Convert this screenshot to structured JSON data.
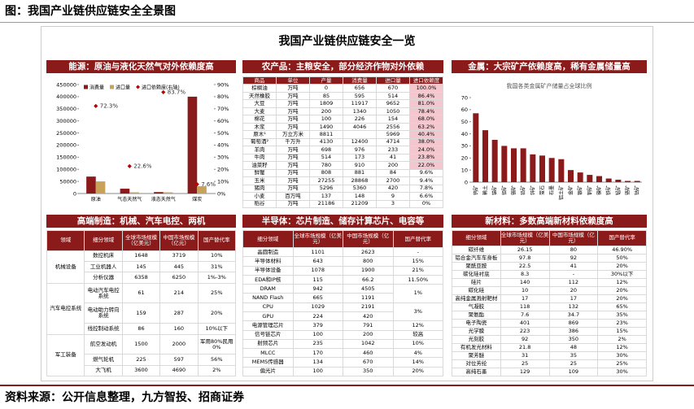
{
  "header": "图：我国产业链供应链安全全景图",
  "title": "我国产业链供应链安全一览",
  "footer": "资料来源：公开信息整理，九方智投、招商证券",
  "sections": [
    "能源：原油与液化天然气对外依赖度高",
    "农产品：主粮安全，部分经济作物对外依赖",
    "金属：大宗矿产依赖度高，稀有金属储量高",
    "高端制造：机械、汽车电控、两机",
    "半导体：芯片制造、储存计算芯片、电容等",
    "新材料：多数高端新材料依赖度高"
  ],
  "chart_data": [
    {
      "type": "bar",
      "categories": [
        "原油",
        "气态天然气",
        "液态天然气",
        "煤炭"
      ],
      "series": [
        {
          "name": "消费量",
          "color": "#8b1a1a",
          "values": [
            70000,
            20000,
            6000,
            400000
          ]
        },
        {
          "name": "进口量",
          "color": "#c9a25a",
          "values": [
            50000,
            5000,
            5000,
            30000
          ]
        },
        {
          "name": "进口依赖度(右轴)",
          "color": "#c00000",
          "axis": "y2",
          "marker": "diamond",
          "values": [
            72.3,
            22.6,
            83.7,
            7.6
          ],
          "value_labels": [
            "72.3%",
            "22.6%",
            "83.7%",
            "7.6%"
          ]
        }
      ],
      "ylim": [
        0,
        450000
      ],
      "yticks": [
        0,
        50000,
        100000,
        150000,
        200000,
        250000,
        300000,
        350000,
        400000,
        450000
      ],
      "y2lim": [
        0,
        90
      ],
      "y2ticks": [
        {
          "value": 0,
          "label": "0%"
        },
        {
          "value": 10,
          "label": "10%"
        },
        {
          "value": 20,
          "label": "20%"
        },
        {
          "value": 30,
          "label": "30%"
        },
        {
          "value": 40,
          "label": "40%"
        },
        {
          "value": 50,
          "label": "50%"
        },
        {
          "value": 60,
          "label": "60%"
        },
        {
          "value": 70,
          "label": "70%"
        },
        {
          "value": 80,
          "label": "80%"
        },
        {
          "value": 90,
          "label": "90%"
        }
      ]
    },
    {
      "type": "bar",
      "subtitle": "我国各类金属矿产储量占全球比例",
      "color": "#8b1a1a",
      "categories": [
        "钨矿",
        "稀土",
        "锑矿",
        "钼矿",
        "锡矿",
        "铅矿",
        "锌矿",
        "萤石",
        "石墨",
        "铝土矿",
        "金矿",
        "银矿",
        "铜矿",
        "镍矿",
        "铁矿",
        "锰矿",
        "铬矿",
        "钴矿"
      ],
      "values": [
        57,
        43,
        35,
        30,
        28,
        28,
        23,
        22,
        20,
        19,
        10,
        8,
        6,
        5,
        3,
        2,
        1,
        1
      ],
      "ylim": [
        0,
        70
      ],
      "yticks": [
        0,
        10,
        20,
        30,
        40,
        50,
        60,
        70
      ]
    }
  ],
  "tables": {
    "agriculture": {
      "columns": [
        "商品",
        "单位",
        "产量",
        "消费量",
        "进口量",
        "进口依赖度"
      ],
      "rows": [
        [
          "棕榈油",
          "万吨",
          "0",
          "656",
          "670",
          "100.0%"
        ],
        [
          "天然橡胶",
          "万吨",
          "85",
          "595",
          "514",
          "86.4%"
        ],
        [
          "大豆",
          "万吨",
          "1809",
          "11917",
          "9652",
          "81.0%"
        ],
        [
          "大麦",
          "万吨",
          "200",
          "1340",
          "1050",
          "78.4%"
        ],
        [
          "棉花",
          "万吨",
          "100",
          "226",
          "154",
          "68.0%"
        ],
        [
          "木浆",
          "万吨",
          "1490",
          "4046",
          "2556",
          "63.2%"
        ],
        [
          "原木¹",
          "万立方米",
          "8811",
          null,
          "5969",
          "40.4%"
        ],
        [
          "葡萄酒²",
          "千万升",
          "4130",
          "12400",
          "4714",
          "38.0%"
        ],
        [
          "羊肉",
          "万吨",
          "698",
          "976",
          "233",
          "24.0%"
        ],
        [
          "牛肉",
          "万吨",
          "514",
          "173",
          "41",
          "23.8%"
        ],
        [
          "油菜籽",
          "万吨",
          "780",
          "910",
          "200",
          "22.0%"
        ],
        [
          "鲜蟹",
          "万吨",
          "808",
          "881",
          "84",
          "9.6%"
        ],
        [
          "玉米",
          "万吨",
          "27255",
          "28868",
          "2700",
          "9.4%"
        ],
        [
          "猪肉",
          "万吨",
          "5296",
          "5360",
          "420",
          "7.8%"
        ],
        [
          "小麦",
          "百万吨",
          "137",
          "148",
          "9",
          "6.6%"
        ],
        [
          "稻谷",
          "万吨",
          "21186",
          "21209",
          "3",
          "0%"
        ]
      ]
    },
    "manufacturing": {
      "columns": [
        "领域",
        "细分领域",
        "全球市场规模（亿美元）",
        "中国市场规模（亿元）",
        "国产替代率"
      ],
      "groups": [
        {
          "domain": "机械设备",
          "rows": [
            [
              "数控机床",
              "1648",
              "3719",
              "10%"
            ],
            [
              "工业机器人",
              "145",
              "445",
              "31%"
            ],
            [
              "分析仪器",
              "6358",
              "6250",
              "1%-3%"
            ]
          ]
        },
        {
          "domain": "汽车电控系统",
          "rows": [
            [
              "电动汽车电控系统",
              "61",
              "214",
              "25%"
            ],
            [
              "电动助力转向系统",
              "159",
              "287",
              "20%"
            ],
            [
              "线控制动系统",
              "86",
              "160",
              "10%以下"
            ]
          ]
        },
        {
          "domain": "军工装备",
          "rows": [
            [
              "航空发动机",
              "1500",
              "2000",
              "军用80%民用0%"
            ],
            [
              "燃气轮机",
              "225",
              "597",
              "56%"
            ],
            [
              "大飞机",
              "3600",
              "4690",
              "2%"
            ]
          ]
        }
      ]
    },
    "semiconductor": {
      "columns": [
        "细分领域",
        "全球市场规模（亿美元）",
        "中国市场规模（亿元）",
        "国产替代率"
      ],
      "rows": [
        [
          "晶圆制造",
          "1101",
          "2623",
          "-"
        ],
        [
          "半导体材料",
          "643",
          "800",
          "15%"
        ],
        [
          "半导体设备",
          "1078",
          "1900",
          "21%"
        ],
        [
          "EDA和IP核",
          "115",
          "66.2",
          "11.50%"
        ],
        [
          "DRAM",
          "942",
          "4505",
          "1%"
        ],
        [
          "NAND Flash",
          "665",
          "1191"
        ],
        [
          "CPU",
          "1029",
          "2191",
          "3%"
        ],
        [
          "GPU",
          "224",
          "420"
        ],
        [
          "电源管理芯片",
          "379",
          "791",
          "12%"
        ],
        [
          "信号链芯片",
          "100",
          "200",
          "较高"
        ],
        [
          "射频芯片",
          "235",
          "1042",
          "10%"
        ],
        [
          "MLCC",
          "170",
          "460",
          "4%"
        ],
        [
          "MEMS传感器",
          "134",
          "670",
          "14%"
        ],
        [
          "偏光片",
          "100",
          "350",
          "20%"
        ]
      ]
    },
    "materials": {
      "columns": [
        "细分领域",
        "全球市场规模（亿美元）",
        "中国市场规模（亿元）",
        "国产替代率"
      ],
      "rows": [
        [
          "碳纤维",
          "26.15",
          "80",
          "46.90%"
        ],
        [
          "铝合金汽车车身板",
          "97.8",
          "92",
          "50%"
        ],
        [
          "聚酰亚胺",
          "22.5",
          "41",
          "20%"
        ],
        [
          "碳化硅衬底",
          "8.3",
          "-",
          "30%以下"
        ],
        [
          "硅片",
          "140",
          "112",
          "12%"
        ],
        [
          "碳化硅",
          "10",
          "20",
          "20%"
        ],
        [
          "高纯金属溅射靶材",
          "17",
          "17",
          "20%"
        ],
        [
          "气凝胶",
          "118",
          "132",
          "65%"
        ],
        [
          "聚氨酯",
          "7.6",
          "34.7",
          "35%"
        ],
        [
          "电子陶瓷",
          "401",
          "869",
          "23%"
        ],
        [
          "光学膜",
          "223",
          "386",
          "15%"
        ],
        [
          "光刻胶",
          "92",
          "350",
          "2%"
        ],
        [
          "有机发光材料",
          "21.8",
          "48",
          "12%"
        ],
        [
          "聚芳醚",
          "31",
          "35",
          "30%"
        ],
        [
          "对位芳纶",
          "25",
          "25",
          "25%"
        ],
        [
          "高纯石墨",
          "129",
          "109",
          "30%"
        ]
      ]
    }
  }
}
